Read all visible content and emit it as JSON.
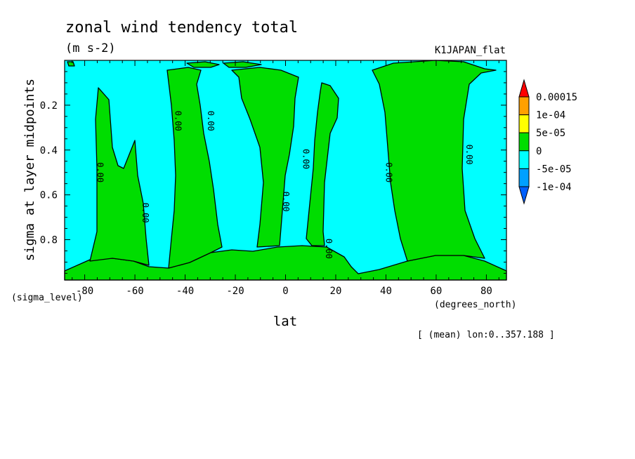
{
  "chart_data": {
    "type": "heatmap",
    "title": "zonal wind tendency total",
    "units": "(m s-2)",
    "dataset": "K1JAPAN_flat",
    "xlabel": "lat",
    "x_unit_label": "(degrees_north)",
    "ylabel": "sigma at layer midpoints",
    "y_unit_label": "(sigma_level)",
    "averaging_note": "[ (mean) lon:0..357.188 ]",
    "xlim": [
      -88,
      88
    ],
    "ylim": [
      0.0,
      0.98
    ],
    "y_inverted": true,
    "x_ticks": [
      -80,
      -60,
      -40,
      -20,
      0,
      20,
      40,
      60,
      80
    ],
    "x_tick_labels": [
      "-80",
      "-60",
      "-40",
      "-20",
      "0",
      "20",
      "40",
      "60",
      "80"
    ],
    "y_ticks": [
      0.2,
      0.4,
      0.6,
      0.8
    ],
    "y_tick_labels": [
      "0.2",
      "0.4",
      "0.6",
      "0.8"
    ],
    "colorbar": {
      "levels": [
        "0.00015",
        "1e-04",
        "5e-05",
        "0",
        "-5e-05",
        "-1e-04"
      ],
      "colors": [
        "#ff0000",
        "#ffa000",
        "#ffff00",
        "#00dd00",
        "#00ffff",
        "#00a0ff",
        "#0060ff"
      ]
    },
    "contour_labels": [
      {
        "text": "0.00",
        "lat": -74,
        "sigma": 0.5
      },
      {
        "text": "0.00",
        "lat": -56,
        "sigma": 0.68
      },
      {
        "text": "0.00",
        "lat": -43,
        "sigma": 0.27
      },
      {
        "text": "0.00",
        "lat": -30,
        "sigma": 0.27
      },
      {
        "text": "0.00",
        "lat": 0,
        "sigma": 0.63
      },
      {
        "text": "0.00",
        "lat": 8,
        "sigma": 0.44
      },
      {
        "text": "0.00",
        "lat": 17,
        "sigma": 0.84
      },
      {
        "text": "0.00",
        "lat": 41,
        "sigma": 0.5
      },
      {
        "text": "0.00",
        "lat": 73,
        "sigma": 0.42
      }
    ],
    "regions": [
      {
        "sign": "positive",
        "range": "0 to 5e-05",
        "lat_range": [
          -88,
          88
        ],
        "sigma_range": [
          0.85,
          0.98
        ],
        "note": "near-surface band"
      },
      {
        "sign": "positive",
        "range": "0 to 5e-05",
        "lat_range": [
          -78,
          -55
        ],
        "sigma_range": [
          0.1,
          0.98
        ]
      },
      {
        "sign": "positive",
        "range": "0 to 5e-05",
        "lat_range": [
          -48,
          -32
        ],
        "sigma_range": [
          0.03,
          0.98
        ]
      },
      {
        "sign": "positive",
        "range": "0 to 5e-05",
        "lat_range": [
          -18,
          5
        ],
        "sigma_range": [
          0.03,
          0.98
        ]
      },
      {
        "sign": "positive",
        "range": "0 to 5e-05",
        "lat_range": [
          8,
          22
        ],
        "sigma_range": [
          0.1,
          0.98
        ]
      },
      {
        "sign": "positive",
        "range": "0 to 5e-05",
        "lat_range": [
          35,
          78
        ],
        "sigma_range": [
          0.0,
          0.98
        ]
      },
      {
        "sign": "negative",
        "range": "-5e-05 to 0",
        "lat_range": [
          -88,
          88
        ],
        "sigma_range": [
          0.0,
          0.9
        ],
        "note": "background between positive columns"
      }
    ]
  }
}
